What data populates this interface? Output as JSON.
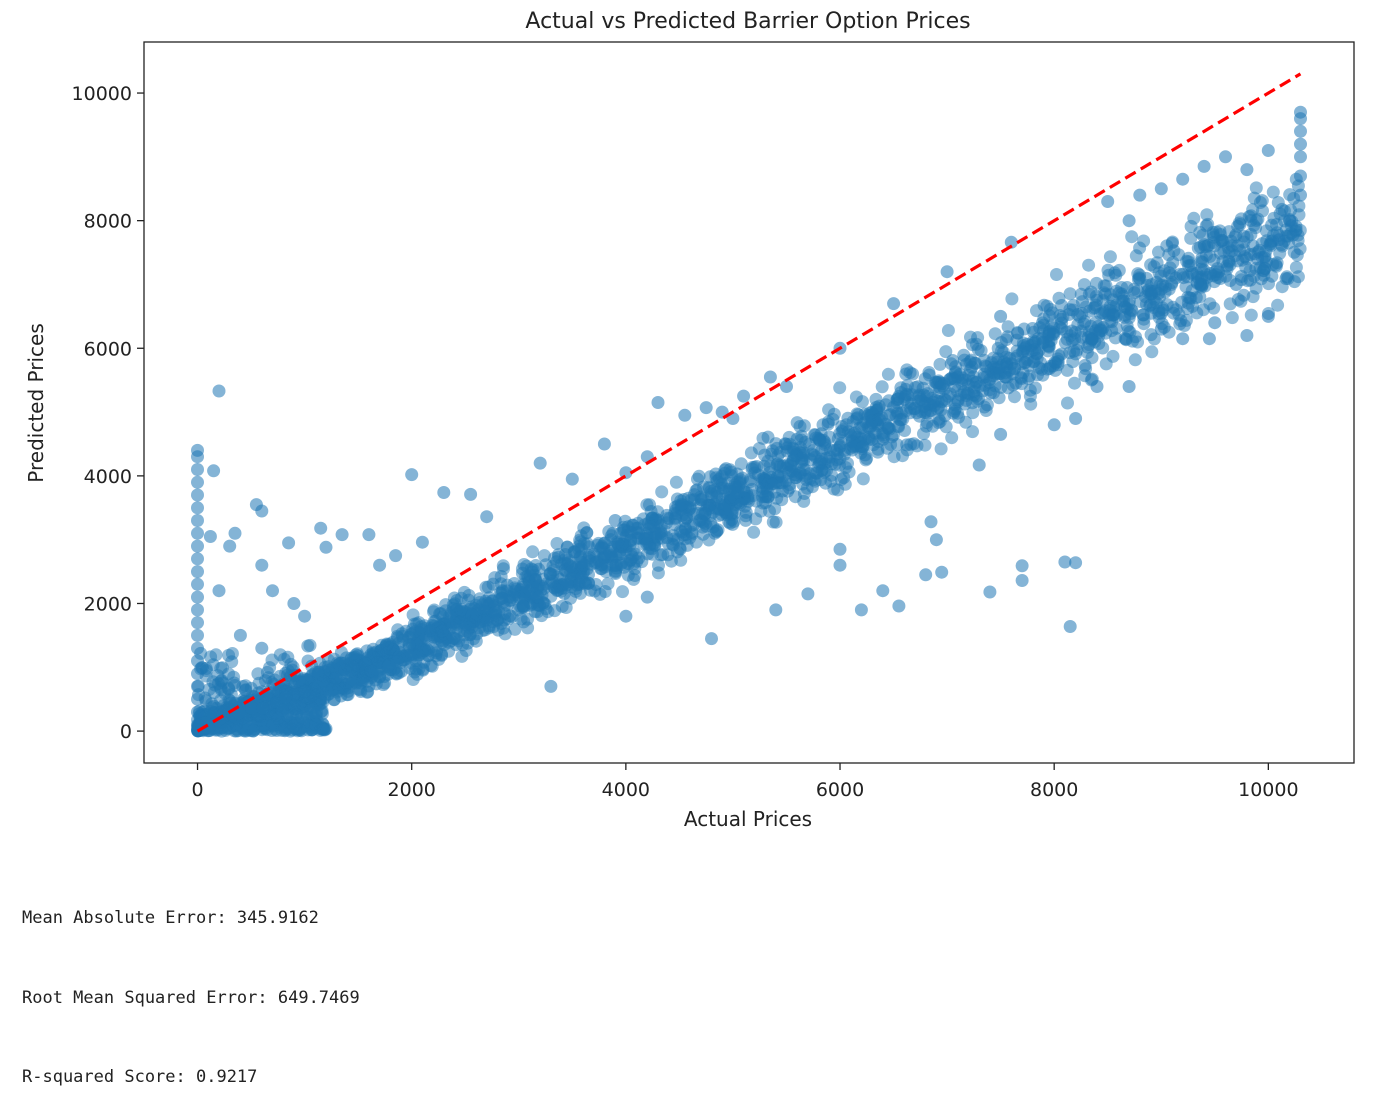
{
  "chart_data": {
    "type": "scatter",
    "title": "Actual vs Predicted Barrier Option Prices",
    "xlabel": "Actual Prices",
    "ylabel": "Predicted Prices",
    "xlim": [
      -500,
      10800
    ],
    "ylim": [
      -500,
      10800
    ],
    "xticks": [
      0,
      2000,
      4000,
      6000,
      8000,
      10000
    ],
    "yticks": [
      0,
      2000,
      4000,
      6000,
      8000,
      10000
    ],
    "grid": false,
    "legend": "none",
    "series": [
      {
        "kind": "scatter",
        "color": "#1f77b4",
        "alpha": 0.55,
        "points": [
          [
            0,
            4400
          ],
          [
            0,
            4300
          ],
          [
            0,
            4100
          ],
          [
            0,
            3900
          ],
          [
            0,
            3700
          ],
          [
            0,
            3500
          ],
          [
            0,
            3300
          ],
          [
            0,
            3100
          ],
          [
            0,
            2900
          ],
          [
            0,
            2700
          ],
          [
            0,
            2500
          ],
          [
            0,
            2300
          ],
          [
            0,
            2100
          ],
          [
            0,
            1900
          ],
          [
            0,
            1700
          ],
          [
            0,
            1500
          ],
          [
            0,
            1300
          ],
          [
            0,
            1100
          ],
          [
            0,
            900
          ],
          [
            0,
            700
          ],
          [
            0,
            500
          ],
          [
            0,
            300
          ],
          [
            0,
            100
          ],
          [
            200,
            5330
          ],
          [
            150,
            4080
          ],
          [
            120,
            3050
          ],
          [
            300,
            2900
          ],
          [
            350,
            3100
          ],
          [
            550,
            3550
          ],
          [
            600,
            3450
          ],
          [
            850,
            2950
          ],
          [
            1150,
            3180
          ],
          [
            1200,
            2880
          ],
          [
            1350,
            3080
          ],
          [
            1600,
            3080
          ],
          [
            2000,
            4020
          ],
          [
            2300,
            3740
          ],
          [
            2550,
            3710
          ],
          [
            2700,
            3360
          ],
          [
            2100,
            2960
          ],
          [
            1850,
            2750
          ],
          [
            1700,
            2600
          ],
          [
            600,
            2600
          ],
          [
            700,
            2200
          ],
          [
            900,
            2000
          ],
          [
            1000,
            1800
          ],
          [
            400,
            1500
          ],
          [
            600,
            1300
          ],
          [
            200,
            2200
          ],
          [
            3200,
            4200
          ],
          [
            3500,
            3950
          ],
          [
            3800,
            4500
          ],
          [
            3900,
            3300
          ],
          [
            4000,
            4050
          ],
          [
            4200,
            4300
          ],
          [
            4300,
            5150
          ],
          [
            4550,
            4950
          ],
          [
            4750,
            5070
          ],
          [
            4900,
            5000
          ],
          [
            5100,
            5250
          ],
          [
            5350,
            5550
          ],
          [
            3300,
            700
          ],
          [
            4000,
            1800
          ],
          [
            4200,
            2100
          ],
          [
            4800,
            1450
          ],
          [
            5400,
            1900
          ],
          [
            5700,
            2150
          ],
          [
            6000,
            2600
          ],
          [
            6000,
            2850
          ],
          [
            6200,
            1900
          ],
          [
            6400,
            2200
          ],
          [
            6550,
            1960
          ],
          [
            6800,
            2450
          ],
          [
            6850,
            3280
          ],
          [
            6900,
            3000
          ],
          [
            6950,
            2490
          ],
          [
            7400,
            2180
          ],
          [
            7700,
            2360
          ],
          [
            7700,
            2590
          ],
          [
            8100,
            2650
          ],
          [
            8200,
            2640
          ],
          [
            8150,
            1640
          ],
          [
            7300,
            4170
          ],
          [
            7500,
            4650
          ],
          [
            8000,
            4800
          ],
          [
            8200,
            4900
          ],
          [
            8400,
            5400
          ],
          [
            8700,
            5400
          ],
          [
            9000,
            6300
          ],
          [
            9200,
            6150
          ],
          [
            9450,
            6150
          ],
          [
            9500,
            6400
          ],
          [
            9800,
            6200
          ],
          [
            10000,
            6500
          ],
          [
            9700,
            7000
          ],
          [
            9900,
            7400
          ],
          [
            10100,
            7700
          ],
          [
            10200,
            8000
          ],
          [
            10300,
            8400
          ],
          [
            10300,
            8700
          ],
          [
            10300,
            9000
          ],
          [
            10300,
            9200
          ],
          [
            10300,
            9400
          ],
          [
            10300,
            9600
          ],
          [
            10300,
            9700
          ],
          [
            10000,
            9100
          ],
          [
            9800,
            8800
          ],
          [
            9600,
            9000
          ],
          [
            9400,
            8850
          ],
          [
            9200,
            8650
          ],
          [
            9000,
            8500
          ],
          [
            8800,
            8400
          ],
          [
            8500,
            8300
          ],
          [
            8700,
            8000
          ],
          [
            7600,
            7660
          ],
          [
            7500,
            6500
          ],
          [
            7000,
            7200
          ],
          [
            6500,
            6700
          ],
          [
            6000,
            6000
          ],
          [
            5500,
            5400
          ],
          [
            5000,
            4900
          ]
        ]
      },
      {
        "kind": "line",
        "name": "",
        "color": "#ff0000",
        "style": "dashed",
        "points": [
          [
            0,
            0
          ],
          [
            10300,
            10300
          ]
        ]
      }
    ]
  },
  "metrics": {
    "mae": "Mean Absolute Error: 345.9162",
    "rmse": "Root Mean Squared Error: 649.7469",
    "r2": "R-squared Score: 0.9217"
  }
}
